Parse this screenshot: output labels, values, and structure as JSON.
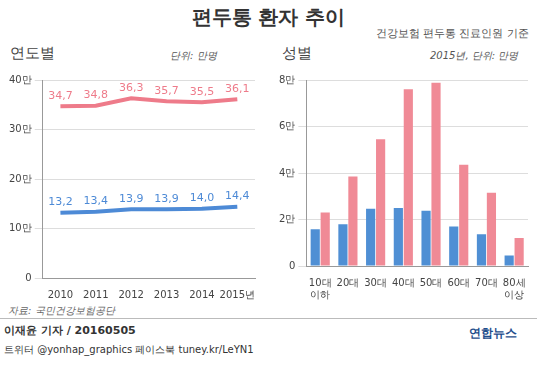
{
  "title": "편두통 환자 추이",
  "subtitle": "건강보험 편두통 진료인원 기준",
  "chart_data": [
    {
      "type": "line",
      "title": "연도별",
      "subtitle": "단위: 만명",
      "categories": [
        "2010",
        "2011",
        "2012",
        "2013",
        "2014",
        "2015년"
      ],
      "series": [
        {
          "color": "#ee7b8a",
          "values": [
            34.7,
            34.8,
            36.3,
            35.7,
            35.5,
            36.1
          ],
          "value_labels": [
            "34,7",
            "34,8",
            "36,3",
            "35,7",
            "35,5",
            "36,1"
          ]
        },
        {
          "color": "#4d8ad6",
          "values": [
            13.2,
            13.4,
            13.9,
            13.9,
            14.0,
            14.4
          ],
          "value_labels": [
            "13,2",
            "13,4",
            "13,9",
            "13,9",
            "14,0",
            "14,4"
          ]
        }
      ],
      "ylim": [
        0,
        40
      ],
      "yticks": [
        0,
        {
          "value": 10,
          "label": "10만"
        },
        {
          "value": 20,
          "label": "20만"
        },
        {
          "value": 30,
          "label": "30만"
        },
        {
          "value": 40,
          "label": "40만"
        }
      ],
      "grid": true,
      "data_labels": true
    },
    {
      "type": "bar",
      "title": "성별",
      "subtitle": "2015년, 단위: 만명",
      "categories": [
        "10대 이하",
        "20대",
        "30대",
        "40대",
        "50대",
        "60대",
        "70대",
        "80세 이상"
      ],
      "series": [
        {
          "color": "#4f8fd4",
          "values": [
            1.58,
            1.8,
            2.46,
            2.5,
            2.38,
            1.7,
            1.37,
            0.45
          ]
        },
        {
          "color": "#f08a96",
          "values": [
            2.3,
            3.85,
            5.45,
            7.6,
            7.88,
            4.36,
            3.15,
            1.2
          ]
        }
      ],
      "ylim": [
        0,
        8
      ],
      "yticks": [
        0,
        {
          "value": 2,
          "label": "2만"
        },
        {
          "value": 4,
          "label": "4만"
        },
        {
          "value": 6,
          "label": "6만"
        },
        {
          "value": 8,
          "label": "8만"
        }
      ],
      "grid": true
    }
  ],
  "source": "자료: 국민건강보험공단",
  "credit": "이재윤 기자 / 20160505",
  "social": "트위터 @yonhap_graphics 페이스북 tuney.kr/LeYN1",
  "logo": "연합뉴스"
}
